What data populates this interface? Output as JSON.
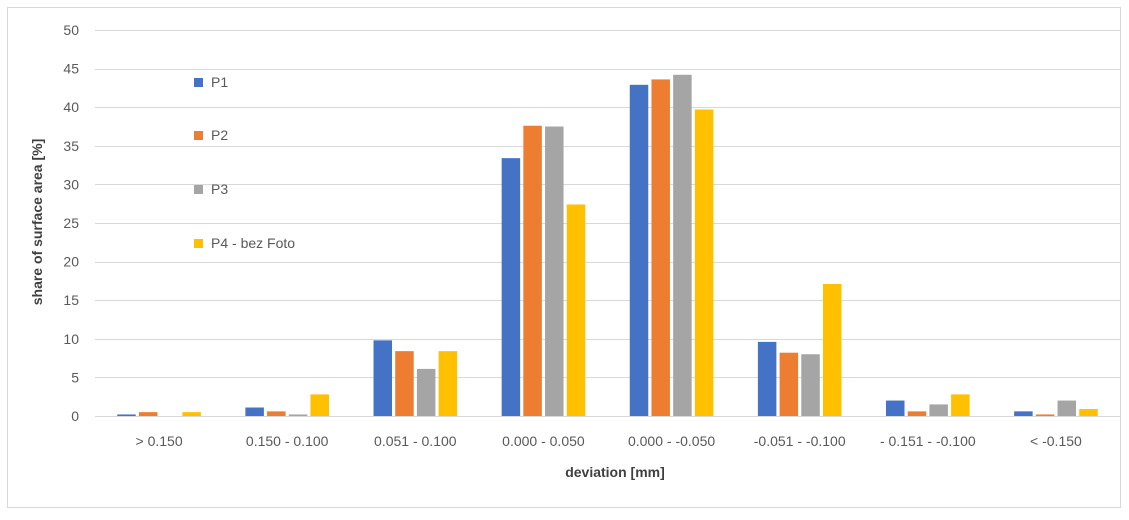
{
  "chart_data": {
    "type": "bar",
    "title": "",
    "xlabel": "deviation [mm]",
    "ylabel": "share of surface area [%]",
    "ylim": [
      0,
      50
    ],
    "yticks": [
      0,
      5,
      10,
      15,
      20,
      25,
      30,
      35,
      40,
      45,
      50
    ],
    "grid": true,
    "legend_position": "top-left",
    "categories": [
      "> 0.150",
      "0.150 - 0.100",
      "0.051 - 0.100",
      "0.000 - 0.050",
      "0.000 - -0.050",
      "-0.051 - -0.100",
      "- 0.151 - -0.100",
      "< -0.150"
    ],
    "series": [
      {
        "name": "P1",
        "color": "#4472c4",
        "values": [
          0.2,
          1.1,
          9.8,
          33.4,
          42.9,
          9.6,
          2.0,
          0.6
        ]
      },
      {
        "name": "P2",
        "color": "#ed7d31",
        "values": [
          0.5,
          0.6,
          8.4,
          37.6,
          43.6,
          8.2,
          0.6,
          0.2
        ]
      },
      {
        "name": "P3",
        "color": "#a5a5a5",
        "values": [
          0.0,
          0.2,
          6.1,
          37.5,
          44.2,
          8.0,
          1.5,
          2.0
        ]
      },
      {
        "name": "P4 - bez Foto",
        "color": "#ffc000",
        "values": [
          0.5,
          2.8,
          8.4,
          27.4,
          39.7,
          17.1,
          2.8,
          0.9
        ]
      }
    ]
  }
}
